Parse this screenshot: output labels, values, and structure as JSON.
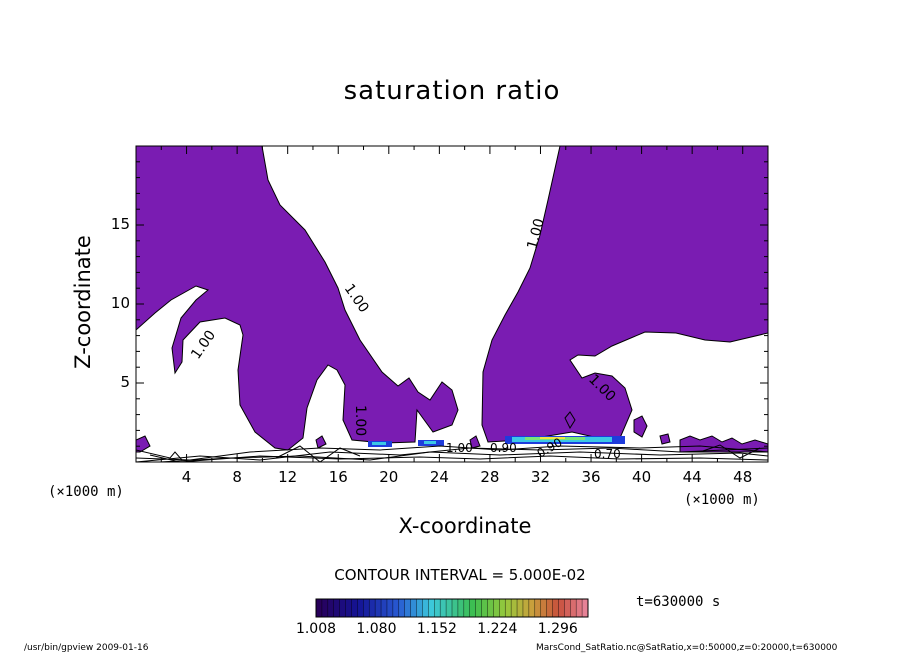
{
  "chart_data": {
    "type": "heatmap",
    "title": "saturation ratio",
    "xlabel": "X-coordinate",
    "ylabel": "Z-coordinate",
    "x_unit": "(×1000 m)",
    "z_unit": "(×1000 m)",
    "xlim": [
      0,
      50
    ],
    "ylim": [
      0,
      20
    ],
    "x_ticks": [
      "4",
      "8",
      "12",
      "16",
      "20",
      "24",
      "28",
      "32",
      "36",
      "40",
      "44",
      "48"
    ],
    "y_ticks": [
      "5",
      "10",
      "15"
    ],
    "contour_interval": "CONTOUR INTERVAL = 5.000E-02",
    "contour_labels": [
      "1.00",
      "1.00",
      "1.00",
      "1.00",
      "1.00",
      "1.00",
      "0.90",
      "0.90",
      "0.70"
    ],
    "colorbar": {
      "ticks": [
        "1.008",
        "1.080",
        "1.152",
        "1.224",
        "1.296"
      ],
      "range": [
        1.008,
        1.332
      ]
    },
    "time_label": "t=630000 s",
    "colors": {
      "fill": "#7a1cb2",
      "line": "#000000"
    }
  },
  "footer": {
    "left": "/usr/bin/gpview   2009-01-16",
    "right": "MarsCond_SatRatio.nc@SatRatio,x=0:50000,z=0:20000,t=630000"
  }
}
